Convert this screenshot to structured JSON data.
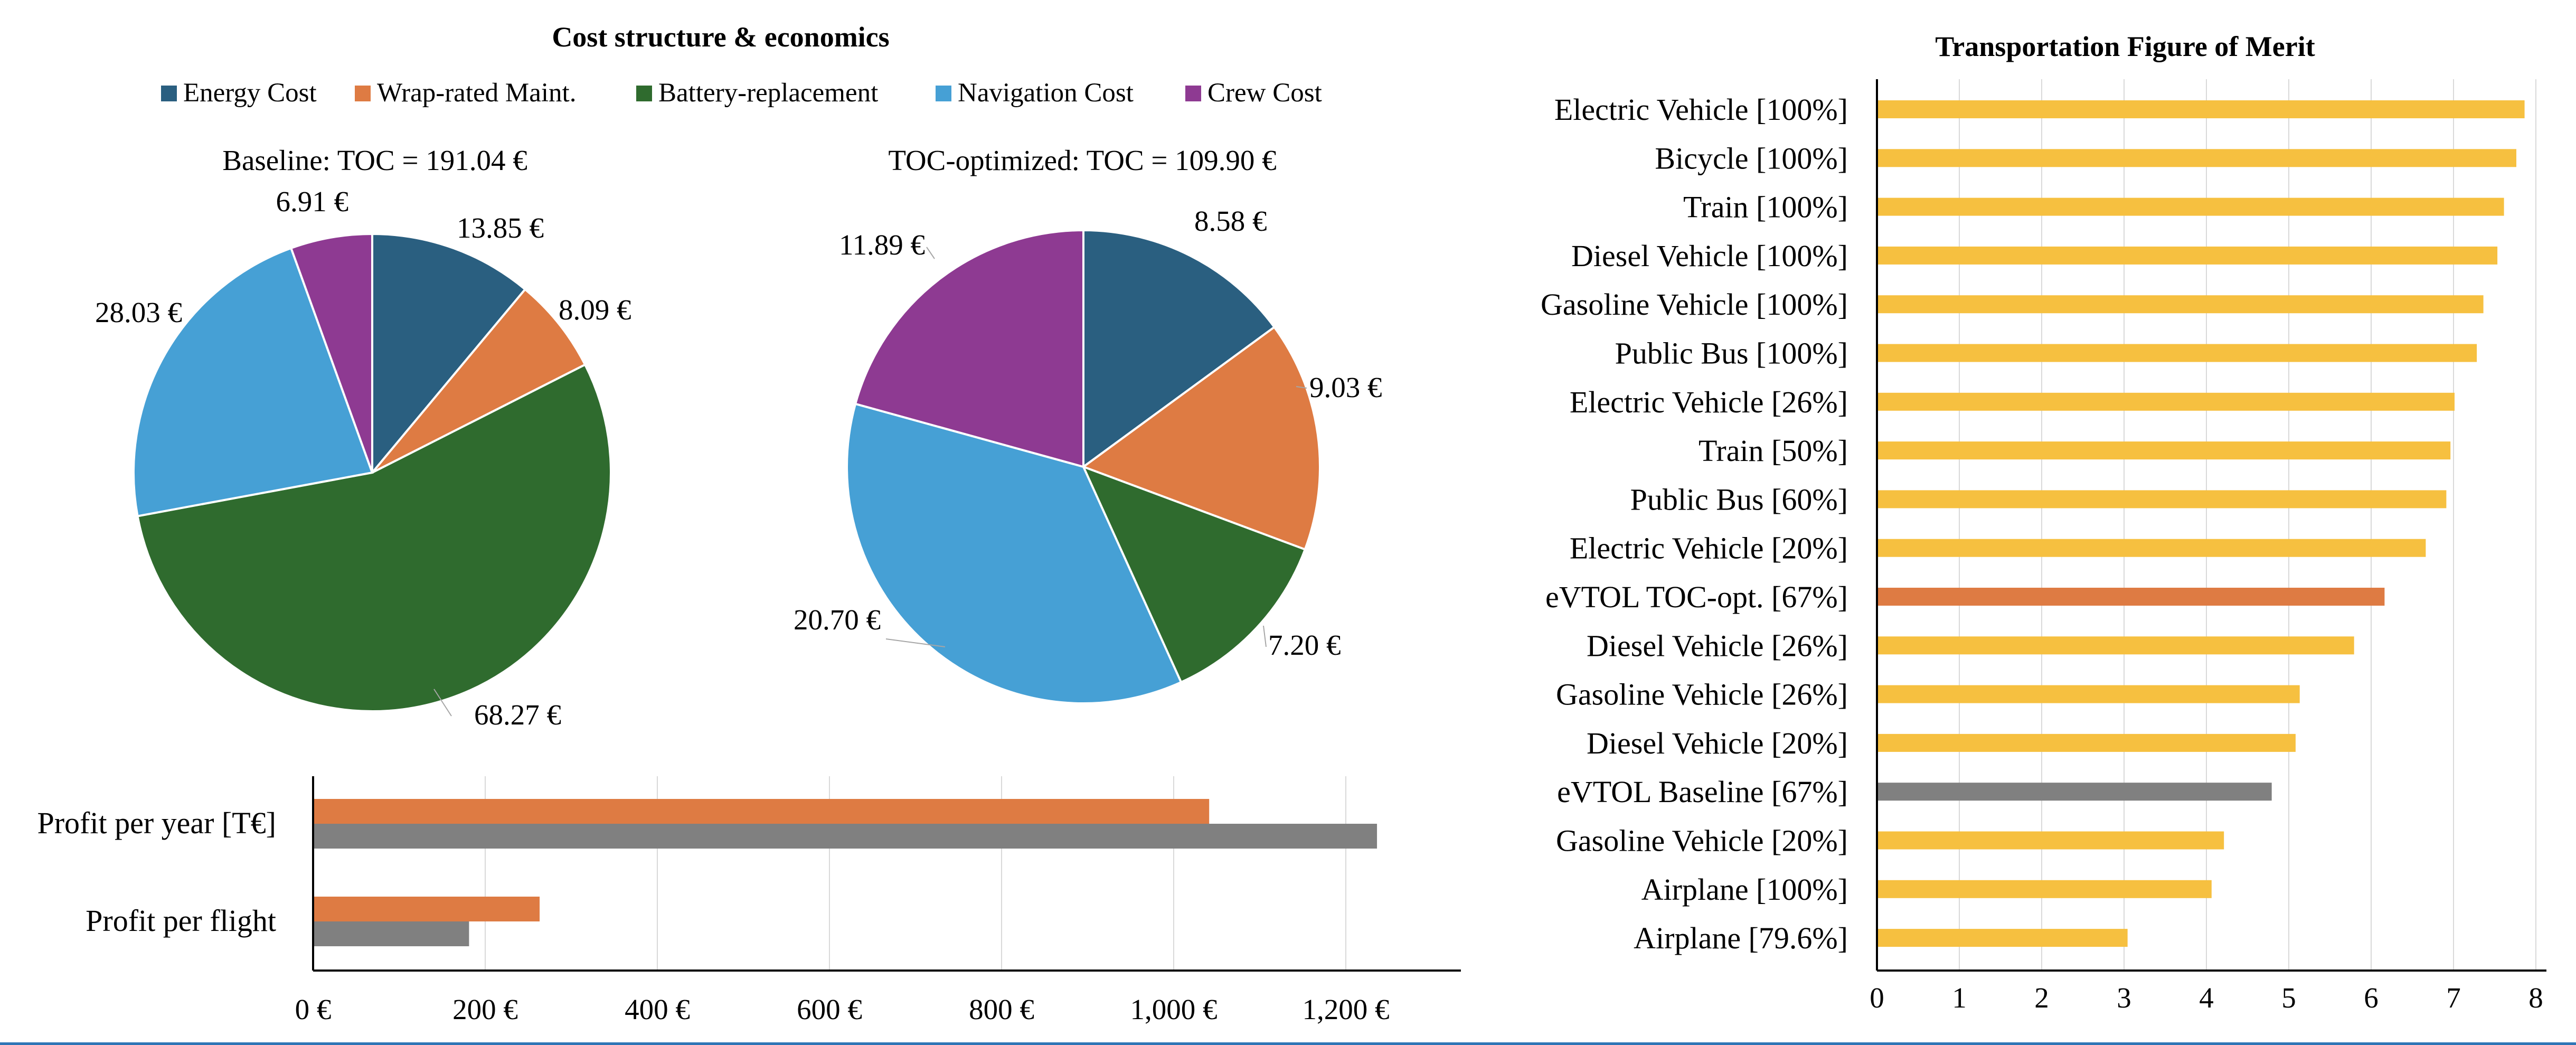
{
  "chart_data": [
    {
      "type": "pie",
      "title": "Cost structure & economics",
      "legend": {
        "position": "top",
        "entries": [
          {
            "name": "Energy Cost",
            "color": "#2a5f80"
          },
          {
            "name": "Wrap-rated Maint.",
            "color": "#de7b43"
          },
          {
            "name": "Battery-replacement",
            "color": "#2f6b2e"
          },
          {
            "name": "Navigation Cost",
            "color": "#46a0d5"
          },
          {
            "name": "Crew Cost",
            "color": "#8e3a92"
          }
        ]
      },
      "pies": [
        {
          "subtitle": "Baseline: TOC = 191.04 €",
          "slices": [
            {
              "name": "Energy Cost",
              "value": 13.85,
              "label": "13.85 €"
            },
            {
              "name": "Wrap-rated Maint.",
              "value": 8.09,
              "label": "8.09 €"
            },
            {
              "name": "Battery-replacement",
              "value": 68.27,
              "label": "68.27 €"
            },
            {
              "name": "Navigation Cost",
              "value": 28.03,
              "label": "28.03 €"
            },
            {
              "name": "Crew Cost",
              "value": 6.91,
              "label": "6.91 €"
            }
          ]
        },
        {
          "subtitle": "TOC-optimized: TOC = 109.90 €",
          "slices": [
            {
              "name": "Energy Cost",
              "value": 8.58,
              "label": "8.58 €"
            },
            {
              "name": "Wrap-rated Maint.",
              "value": 9.03,
              "label": "9.03 €"
            },
            {
              "name": "Battery-replacement",
              "value": 7.2,
              "label": "7.20 €"
            },
            {
              "name": "Navigation Cost",
              "value": 20.7,
              "label": "20.70 €"
            },
            {
              "name": "Crew Cost",
              "value": 11.89,
              "label": "11.89 €"
            }
          ]
        }
      ]
    },
    {
      "type": "bar",
      "orientation": "horizontal",
      "categories": [
        "Profit per year [T€]",
        "Profit per flight"
      ],
      "series": [
        {
          "color": "#de7b43",
          "values": [
            1040,
            262
          ]
        },
        {
          "color": "#808080",
          "values": [
            1235,
            180
          ]
        }
      ],
      "xlim": [
        0,
        1300
      ],
      "xticks": [
        0,
        200,
        400,
        600,
        800,
        1000,
        1200
      ],
      "xtick_labels": [
        "0 €",
        "200 €",
        "400 €",
        "600 €",
        "800 €",
        "1,000 €",
        "1,200 €"
      ],
      "grid": true
    },
    {
      "type": "bar",
      "orientation": "horizontal",
      "title": "Transportation Figure of Merit",
      "categories": [
        "Electric Vehicle [100%]",
        "Bicycle [100%]",
        "Train [100%]",
        "Diesel Vehicle [100%]",
        "Gasoline Vehicle [100%]",
        "Public Bus [100%]",
        "Electric Vehicle [26%]",
        "Train [50%]",
        "Public Bus [60%]",
        "Electric Vehicle [20%]",
        "eVTOL TOC-opt. [67%]",
        "Diesel Vehicle [26%]",
        "Gasoline Vehicle [26%]",
        "Diesel Vehicle [20%]",
        "eVTOL Baseline [67%]",
        "Gasoline Vehicle [20%]",
        "Airplane [100%]",
        "Airplane [79.6%]"
      ],
      "values": [
        7.85,
        7.75,
        7.6,
        7.52,
        7.35,
        7.27,
        7.0,
        6.95,
        6.9,
        6.65,
        6.15,
        5.78,
        5.12,
        5.07,
        4.78,
        4.2,
        4.05,
        3.03
      ],
      "colors": [
        "#f6c040",
        "#f6c040",
        "#f6c040",
        "#f6c040",
        "#f6c040",
        "#f6c040",
        "#f6c040",
        "#f6c040",
        "#f6c040",
        "#f6c040",
        "#de7b43",
        "#f6c040",
        "#f6c040",
        "#f6c040",
        "#808080",
        "#f6c040",
        "#f6c040",
        "#f6c040"
      ],
      "xlim": [
        0,
        8
      ],
      "xticks": [
        0,
        1,
        2,
        3,
        4,
        5,
        6,
        7,
        8
      ],
      "grid": true
    }
  ]
}
